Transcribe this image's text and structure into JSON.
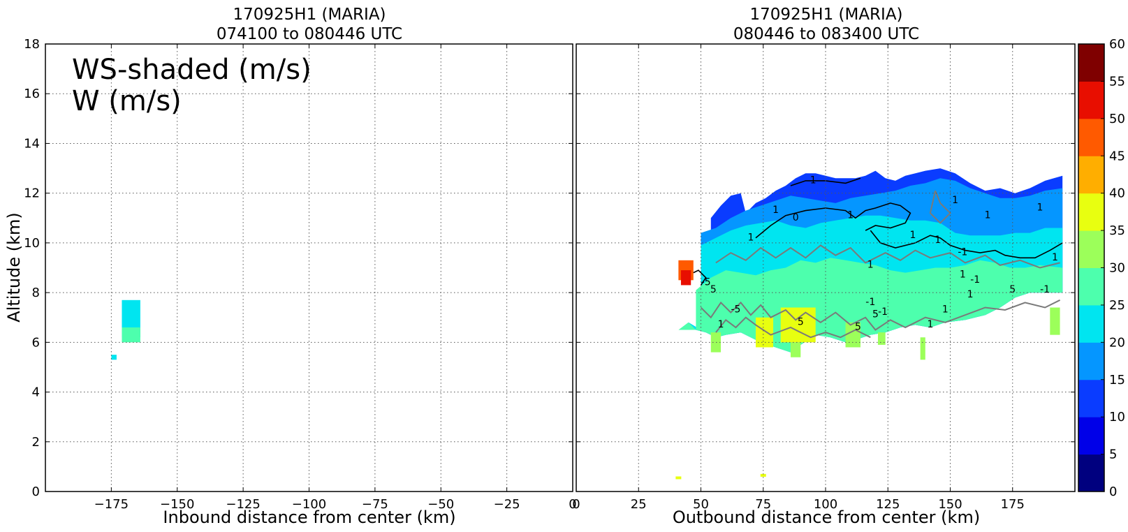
{
  "chart_data": [
    {
      "type": "heatmap",
      "title_line1": "170925H1 (MARIA)",
      "title_line2": "074100 to 080446 UTC",
      "xlabel": "Inbound distance from center (km)",
      "ylabel": "Altitude (km)",
      "xlim": [
        -200,
        0
      ],
      "ylim": [
        0,
        18
      ],
      "xticks": [
        -175,
        -150,
        -125,
        -100,
        -75,
        -50,
        -25,
        0
      ],
      "xtick_labels": [
        "−175",
        "−150",
        "−125",
        "−100",
        "−75",
        "−50",
        "−25",
        "0"
      ],
      "yticks": [
        0,
        2,
        4,
        6,
        8,
        10,
        12,
        14,
        16,
        18
      ],
      "grid": true,
      "legend_line1": "WS-shaded (m/s)",
      "legend_line2": "W (m/s)",
      "regions": [
        {
          "x": [
            -171,
            -164
          ],
          "y": [
            6.2,
            7.7
          ],
          "ws": 22
        },
        {
          "x": [
            -171,
            -164
          ],
          "y": [
            6.0,
            6.6
          ],
          "ws": 27
        },
        {
          "x": [
            -175,
            -173
          ],
          "y": [
            5.3,
            5.5
          ],
          "ws": 22
        }
      ]
    },
    {
      "type": "heatmap",
      "title_line1": "170925H1 (MARIA)",
      "title_line2": "080446 to 083400 UTC",
      "xlabel": "Outbound distance from center (km)",
      "ylabel": "",
      "xlim": [
        0,
        200
      ],
      "ylim": [
        0,
        18
      ],
      "xticks": [
        0,
        25,
        50,
        75,
        100,
        125,
        150,
        175
      ],
      "xtick_labels": [
        "0",
        "25",
        "50",
        "75",
        "100",
        "125",
        "150",
        "175"
      ],
      "yticks": [
        0,
        2,
        4,
        6,
        8,
        10,
        12,
        14,
        16,
        18
      ],
      "grid": true,
      "profiles": [
        {
          "ws": 32,
          "color_index": 6,
          "pts": [
            [
              41,
              6.5
            ],
            [
              45,
              6.8
            ],
            [
              48,
              6.5
            ],
            [
              52,
              6.4
            ],
            [
              56,
              6.2
            ],
            [
              60,
              6.3
            ],
            [
              66,
              6.4
            ],
            [
              70,
              6.2
            ],
            [
              74,
              6.0
            ],
            [
              80,
              5.8
            ],
            [
              86,
              5.6
            ],
            [
              90,
              5.9
            ],
            [
              96,
              6.3
            ],
            [
              102,
              6.2
            ],
            [
              108,
              6.0
            ],
            [
              112,
              6.1
            ],
            [
              118,
              6.3
            ],
            [
              124,
              6.4
            ],
            [
              130,
              6.6
            ],
            [
              136,
              6.7
            ],
            [
              142,
              6.6
            ],
            [
              148,
              6.8
            ],
            [
              156,
              6.9
            ],
            [
              164,
              7.1
            ],
            [
              170,
              7.4
            ],
            [
              176,
              7.8
            ],
            [
              182,
              8.0
            ],
            [
              189,
              8.0
            ]
          ]
        },
        {
          "ws": 27,
          "color_index": 5,
          "pts": [
            [
              48,
              8.1
            ],
            [
              54,
              8.6
            ],
            [
              60,
              8.9
            ],
            [
              66,
              8.8
            ],
            [
              72,
              8.7
            ],
            [
              78,
              8.9
            ],
            [
              84,
              9.0
            ],
            [
              90,
              9.3
            ],
            [
              96,
              9.2
            ],
            [
              102,
              9.4
            ],
            [
              108,
              9.3
            ],
            [
              114,
              9.2
            ],
            [
              120,
              9.1
            ],
            [
              126,
              8.9
            ],
            [
              132,
              8.8
            ],
            [
              138,
              8.9
            ],
            [
              144,
              9.0
            ],
            [
              150,
              9.0
            ],
            [
              156,
              9.1
            ],
            [
              162,
              9.3
            ],
            [
              168,
              9.2
            ],
            [
              174,
              9.0
            ],
            [
              180,
              9.0
            ],
            [
              186,
              9.1
            ],
            [
              195,
              9.0
            ]
          ]
        },
        {
          "ws": 22,
          "color_index": 4,
          "pts": [
            [
              50,
              9.9
            ],
            [
              56,
              10.2
            ],
            [
              62,
              10.5
            ],
            [
              68,
              10.7
            ],
            [
              74,
              10.8
            ],
            [
              80,
              10.9
            ],
            [
              86,
              10.7
            ],
            [
              92,
              10.6
            ],
            [
              98,
              10.8
            ],
            [
              104,
              10.9
            ],
            [
              110,
              11.0
            ],
            [
              116,
              11.1
            ],
            [
              122,
              11.1
            ],
            [
              128,
              11.0
            ],
            [
              134,
              10.9
            ],
            [
              140,
              10.9
            ],
            [
              146,
              10.8
            ],
            [
              152,
              10.4
            ],
            [
              158,
              10.3
            ],
            [
              164,
              10.3
            ],
            [
              170,
              10.3
            ],
            [
              176,
              10.4
            ],
            [
              182,
              10.4
            ],
            [
              188,
              10.6
            ],
            [
              195,
              10.6
            ]
          ]
        },
        {
          "ws": 17,
          "color_index": 3,
          "pts": [
            [
              50,
              10.4
            ],
            [
              56,
              10.6
            ],
            [
              62,
              11.0
            ],
            [
              68,
              11.3
            ],
            [
              74,
              11.5
            ],
            [
              80,
              11.7
            ],
            [
              86,
              11.9
            ],
            [
              92,
              11.8
            ],
            [
              98,
              11.7
            ],
            [
              104,
              11.6
            ],
            [
              110,
              11.8
            ],
            [
              116,
              11.9
            ],
            [
              122,
              12.0
            ],
            [
              128,
              12.1
            ],
            [
              134,
              12.3
            ],
            [
              140,
              12.4
            ],
            [
              146,
              12.6
            ],
            [
              152,
              12.5
            ],
            [
              158,
              12.2
            ],
            [
              164,
              12.0
            ],
            [
              170,
              11.8
            ],
            [
              176,
              11.8
            ],
            [
              182,
              11.9
            ],
            [
              188,
              12.1
            ],
            [
              195,
              12.2
            ]
          ]
        },
        {
          "ws": 12,
          "color_index": 2,
          "pts": [
            [
              54,
              11.0
            ],
            [
              58,
              11.5
            ],
            [
              62,
              11.9
            ],
            [
              66,
              12.0
            ],
            [
              68,
              11.2
            ],
            [
              72,
              11.6
            ],
            [
              76,
              11.8
            ],
            [
              80,
              12.1
            ],
            [
              84,
              12.3
            ],
            [
              88,
              12.6
            ],
            [
              92,
              12.8
            ],
            [
              96,
              12.8
            ],
            [
              100,
              12.7
            ],
            [
              104,
              12.6
            ],
            [
              108,
              12.6
            ],
            [
              112,
              12.6
            ],
            [
              116,
              12.7
            ],
            [
              120,
              12.9
            ],
            [
              124,
              12.6
            ],
            [
              128,
              12.5
            ],
            [
              132,
              12.7
            ],
            [
              136,
              12.8
            ],
            [
              140,
              12.9
            ],
            [
              146,
              13.0
            ],
            [
              152,
              12.8
            ],
            [
              158,
              12.4
            ],
            [
              164,
              12.1
            ],
            [
              170,
              12.2
            ],
            [
              176,
              12.0
            ],
            [
              182,
              12.2
            ],
            [
              188,
              12.5
            ],
            [
              195,
              12.7
            ]
          ]
        }
      ],
      "shallow_blocks": [
        {
          "x": [
            54,
            58
          ],
          "y": [
            5.6,
            6.4
          ],
          "ws": 32
        },
        {
          "x": [
            72,
            79
          ],
          "y": [
            5.8,
            7.0
          ],
          "ws": 37
        },
        {
          "x": [
            82,
            96
          ],
          "y": [
            6.0,
            7.4
          ],
          "ws": 37
        },
        {
          "x": [
            86,
            90
          ],
          "y": [
            5.4,
            6.0
          ],
          "ws": 32
        },
        {
          "x": [
            108,
            114
          ],
          "y": [
            5.8,
            6.8
          ],
          "ws": 32
        },
        {
          "x": [
            121,
            124
          ],
          "y": [
            5.9,
            6.4
          ],
          "ws": 32
        },
        {
          "x": [
            138,
            140
          ],
          "y": [
            5.3,
            6.2
          ],
          "ws": 32
        },
        {
          "x": [
            190,
            194
          ],
          "y": [
            6.3,
            7.4
          ],
          "ws": 32
        }
      ],
      "orange_patch": {
        "x": [
          41,
          47
        ],
        "y": [
          8.5,
          9.3
        ],
        "ws": 47
      },
      "red_patch": {
        "x": [
          42,
          46
        ],
        "y": [
          8.3,
          8.9
        ],
        "ws": 52
      },
      "isolated_points": [
        {
          "x": 41,
          "y": 0.55,
          "ws": 37
        },
        {
          "x": 75,
          "y": 0.65,
          "ws": 37
        }
      ],
      "contour_labels": [
        {
          "text": "1",
          "x": 95,
          "y": 12.4
        },
        {
          "text": "1",
          "x": 80,
          "y": 11.2
        },
        {
          "text": "0",
          "x": 88,
          "y": 10.9
        },
        {
          "text": "1",
          "x": 110,
          "y": 11.0
        },
        {
          "text": "1",
          "x": 135,
          "y": 10.2
        },
        {
          "text": "1",
          "x": 152,
          "y": 11.6
        },
        {
          "text": "1",
          "x": 165,
          "y": 11.0
        },
        {
          "text": "1",
          "x": 186,
          "y": 11.3
        },
        {
          "text": "1",
          "x": 192,
          "y": 9.3
        },
        {
          "text": "1",
          "x": 70,
          "y": 10.1
        },
        {
          "text": "1",
          "x": 145,
          "y": 10.0
        },
        {
          "text": "1",
          "x": 118,
          "y": 9.0
        },
        {
          "text": "-1",
          "x": 160,
          "y": 8.4
        },
        {
          "text": "-1",
          "x": 155,
          "y": 9.5
        },
        {
          "text": "1",
          "x": 158,
          "y": 7.8
        },
        {
          "text": "5",
          "x": 175,
          "y": 8.0
        },
        {
          "text": "5",
          "x": 55,
          "y": 8.0
        },
        {
          "text": "-5",
          "x": 52,
          "y": 8.3
        },
        {
          "text": "-5",
          "x": 64,
          "y": 7.2
        },
        {
          "text": "1",
          "x": 58,
          "y": 6.6
        },
        {
          "text": "5",
          "x": 90,
          "y": 6.7
        },
        {
          "text": "-1",
          "x": 118,
          "y": 7.5
        },
        {
          "text": "5",
          "x": 120,
          "y": 7.0
        },
        {
          "text": "-1",
          "x": 123,
          "y": 7.1
        },
        {
          "text": "5",
          "x": 113,
          "y": 6.5
        },
        {
          "text": "1",
          "x": 142,
          "y": 6.6
        },
        {
          "text": "1",
          "x": 148,
          "y": 7.2
        },
        {
          "text": "-1",
          "x": 188,
          "y": 8.0
        },
        {
          "text": "1",
          "x": 155,
          "y": 8.6
        }
      ]
    }
  ],
  "colorbar": {
    "ticks": [
      0,
      5,
      10,
      15,
      20,
      25,
      30,
      35,
      40,
      45,
      50,
      55,
      60
    ],
    "colors": [
      "#00007f",
      "#0000e8",
      "#0a3cff",
      "#0596ff",
      "#00e5f0",
      "#4dffad",
      "#9cff5a",
      "#e8ff10",
      "#ffae00",
      "#ff5a00",
      "#e80e00",
      "#7f0000"
    ]
  }
}
